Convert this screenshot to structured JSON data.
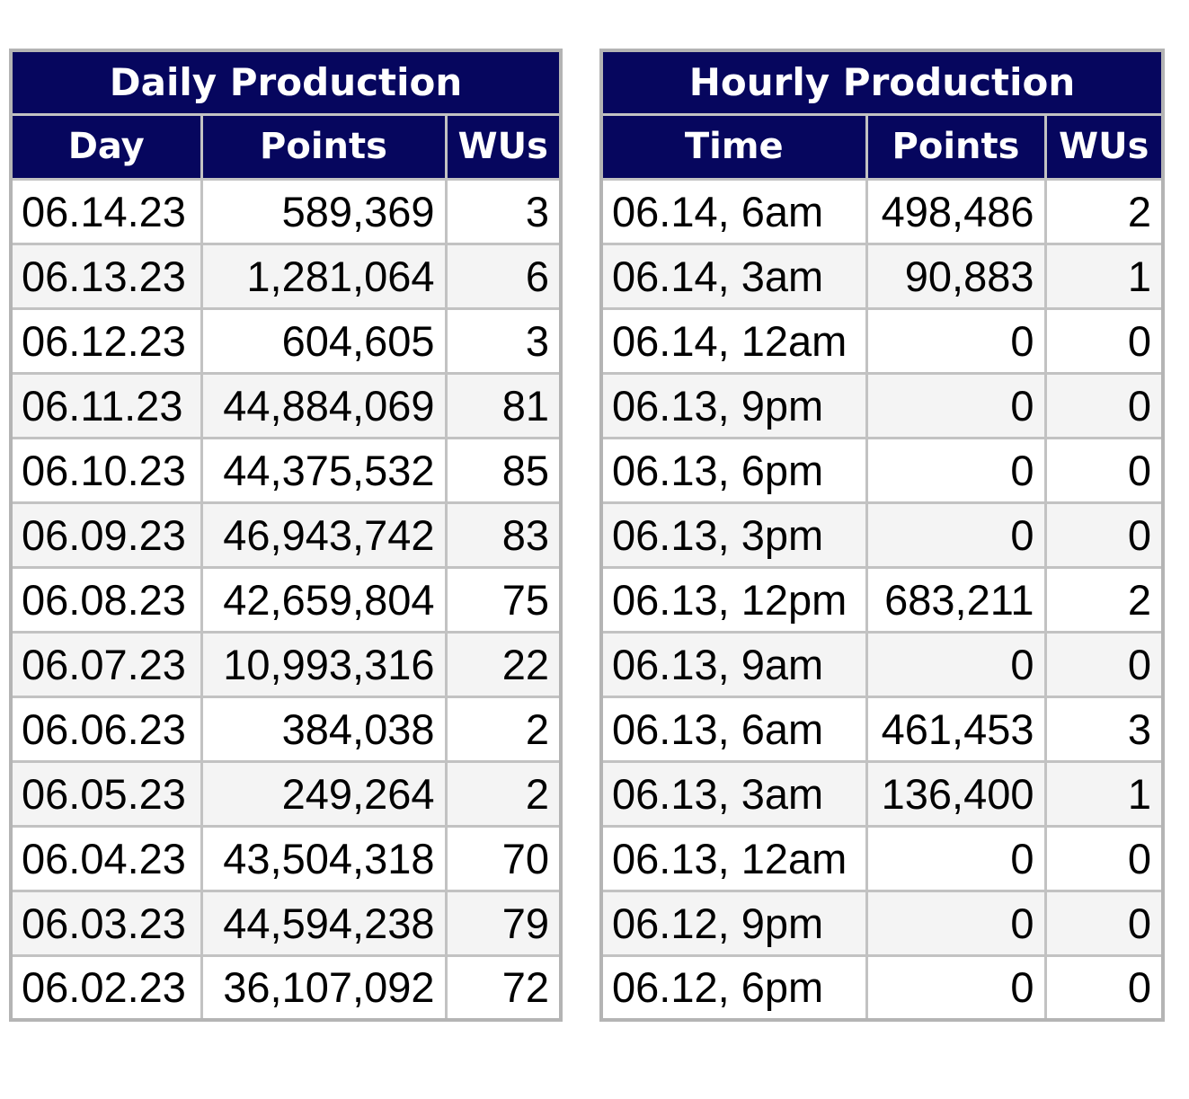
{
  "colors": {
    "header_bg": "#06065e",
    "header_text": "#ffffff",
    "grid_border": "#c2c2c2",
    "outer_border": "#b4b4b4",
    "row_odd_bg": "#ffffff",
    "row_even_bg": "#f4f4f4",
    "cell_text": "#000000",
    "page_bg": "#ffffff"
  },
  "tables": [
    {
      "id": "daily",
      "title": "Daily Production",
      "columns": [
        "Day",
        "Points",
        "WUs"
      ],
      "rows": [
        [
          "06.14.23",
          "589,369",
          "3"
        ],
        [
          "06.13.23",
          "1,281,064",
          "6"
        ],
        [
          "06.12.23",
          "604,605",
          "3"
        ],
        [
          "06.11.23",
          "44,884,069",
          "81"
        ],
        [
          "06.10.23",
          "44,375,532",
          "85"
        ],
        [
          "06.09.23",
          "46,943,742",
          "83"
        ],
        [
          "06.08.23",
          "42,659,804",
          "75"
        ],
        [
          "06.07.23",
          "10,993,316",
          "22"
        ],
        [
          "06.06.23",
          "384,038",
          "2"
        ],
        [
          "06.05.23",
          "249,264",
          "2"
        ],
        [
          "06.04.23",
          "43,504,318",
          "70"
        ],
        [
          "06.03.23",
          "44,594,238",
          "79"
        ],
        [
          "06.02.23",
          "36,107,092",
          "72"
        ]
      ]
    },
    {
      "id": "hourly",
      "title": "Hourly Production",
      "columns": [
        "Time",
        "Points",
        "WUs"
      ],
      "rows": [
        [
          "06.14, 6am",
          "498,486",
          "2"
        ],
        [
          "06.14, 3am",
          "90,883",
          "1"
        ],
        [
          "06.14, 12am",
          "0",
          "0"
        ],
        [
          "06.13, 9pm",
          "0",
          "0"
        ],
        [
          "06.13, 6pm",
          "0",
          "0"
        ],
        [
          "06.13, 3pm",
          "0",
          "0"
        ],
        [
          "06.13, 12pm",
          "683,211",
          "2"
        ],
        [
          "06.13, 9am",
          "0",
          "0"
        ],
        [
          "06.13, 6am",
          "461,453",
          "3"
        ],
        [
          "06.13, 3am",
          "136,400",
          "1"
        ],
        [
          "06.13, 12am",
          "0",
          "0"
        ],
        [
          "06.12, 9pm",
          "0",
          "0"
        ],
        [
          "06.12, 6pm",
          "0",
          "0"
        ]
      ]
    }
  ]
}
